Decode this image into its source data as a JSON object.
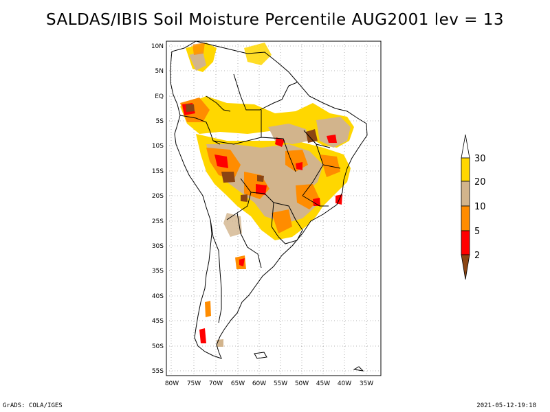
{
  "title": "SALDAS/IBIS Soil Moisture Percentile AUG2001 lev = 13",
  "footer": {
    "left": "GrADS: COLA/IGES",
    "right": "2021-05-12-19:18"
  },
  "map": {
    "lat_labels": [
      "10N",
      "5N",
      "EQ",
      "5S",
      "10S",
      "15S",
      "20S",
      "25S",
      "30S",
      "35S",
      "40S",
      "45S",
      "50S",
      "55S"
    ],
    "lon_labels": [
      "80W",
      "75W",
      "70W",
      "65W",
      "60W",
      "55W",
      "50W",
      "45W",
      "40W",
      "35W"
    ]
  },
  "legend": {
    "labels": [
      "2",
      "5",
      "10",
      "20",
      "30"
    ],
    "colors": {
      "below2": "#8b4513",
      "2to5": "#ff0000",
      "5to10": "#ff8c00",
      "10to20": "#d2b48c",
      "20to30": "#ffd700",
      "above30": "#ffffff"
    }
  }
}
